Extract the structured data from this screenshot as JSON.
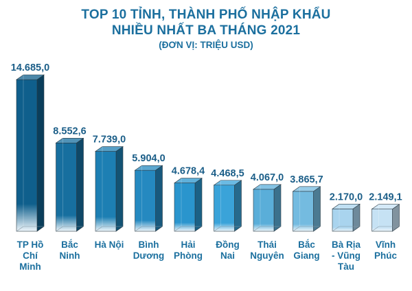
{
  "header": {
    "title_line1": "TOP 10 TỈNH, THÀNH PHỐ NHẬP KHẨU",
    "title_line2": "NHIỀU NHẤT BA THÁNG 2021",
    "unit": "(ĐƠN VỊ: TRIỆU USD)"
  },
  "chart_data": {
    "type": "bar",
    "title": "TOP 10 TỈNH, THÀNH PHỐ NHẬP KHẨU NHIỀU NHẤT BA THÁNG 2021",
    "unit": "(ĐƠN VỊ: TRIỆU USD)",
    "categories": [
      [
        "TP Hồ",
        "Chí",
        "Minh"
      ],
      [
        "Bắc",
        "Ninh"
      ],
      [
        "Hà Nội"
      ],
      [
        "Bình",
        "Dương"
      ],
      [
        "Hải",
        "Phòng"
      ],
      [
        "Đồng",
        "Nai"
      ],
      [
        "Thái",
        "Nguyên"
      ],
      [
        "Bắc",
        "Giang"
      ],
      [
        "Bà Rịa",
        "- Vũng",
        "Tàu"
      ],
      [
        "Vĩnh",
        "Phúc"
      ]
    ],
    "values": [
      14685.0,
      8552.6,
      7739.0,
      5904.0,
      4678.4,
      4468.5,
      4067.0,
      3865.7,
      2170.0,
      2149.1
    ],
    "value_labels": [
      "14.685,0",
      "8.552,6",
      "7.739,0",
      "5.904,0",
      "4.678,4",
      "4.468,5",
      "4.067,0",
      "3.865,7",
      "2.170,0",
      "2.149,1"
    ],
    "colors": [
      "#0f5f8c",
      "#176f9f",
      "#1d7fb3",
      "#2589c0",
      "#2a95cd",
      "#3aa3d9",
      "#5aaed9",
      "#74bbe0",
      "#a9d4ee",
      "#c6e2f4"
    ],
    "style": "3d-glass-bar",
    "grid": false,
    "legend": false
  }
}
